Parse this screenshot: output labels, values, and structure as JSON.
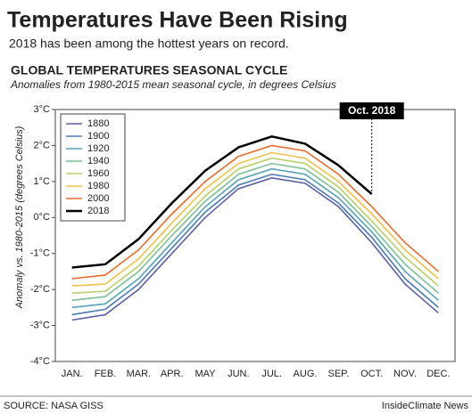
{
  "chart_data": {
    "type": "line",
    "headline": "Temperatures Have Been Rising",
    "subheadline": "2018 has been among the hottest years on record.",
    "title": "GLOBAL TEMPERATURES SEASONAL CYCLE",
    "subtitle": "Anomalies from 1980-2015 mean seasonal cycle, in degrees Celsius",
    "y_label": "Anomaly vs. 1980-2015 (degrees Celsius)",
    "annotation": "Oct. 2018",
    "source": "SOURCE: NASA GISS",
    "credit": "InsideClimate News",
    "legend": "upper left",
    "categories": [
      "JAN.",
      "FEB.",
      "MAR.",
      "APR.",
      "MAY",
      "JUN.",
      "JUL.",
      "AUG.",
      "SEP.",
      "OCT.",
      "NOV.",
      "DEC."
    ],
    "ylim": [
      -4,
      3
    ],
    "yticks": [
      {
        "value": 3,
        "label": "3°C"
      },
      {
        "value": 2,
        "label": "2°C"
      },
      {
        "value": 1,
        "label": "1°C"
      },
      {
        "value": 0,
        "label": "0°C"
      },
      {
        "value": -1,
        "label": "-1°C"
      },
      {
        "value": -2,
        "label": "-2°C"
      },
      {
        "value": -3,
        "label": "-3°C"
      },
      {
        "value": -4,
        "label": "-4°C"
      }
    ],
    "series": [
      {
        "name": "1880",
        "color": "#5b5ea6",
        "values": [
          -2.85,
          -2.7,
          -2.0,
          -1.0,
          0.0,
          0.8,
          1.1,
          0.95,
          0.3,
          -0.7,
          -1.85,
          -2.65
        ]
      },
      {
        "name": "1900",
        "color": "#4a7ab8",
        "values": [
          -2.7,
          -2.55,
          -1.85,
          -0.85,
          0.15,
          0.9,
          1.2,
          1.05,
          0.4,
          -0.55,
          -1.7,
          -2.5
        ]
      },
      {
        "name": "1920",
        "color": "#56a3b5",
        "values": [
          -2.5,
          -2.4,
          -1.7,
          -0.7,
          0.3,
          1.05,
          1.35,
          1.2,
          0.55,
          -0.4,
          -1.5,
          -2.3
        ]
      },
      {
        "name": "1940",
        "color": "#7cbf94",
        "values": [
          -2.3,
          -2.2,
          -1.5,
          -0.5,
          0.45,
          1.2,
          1.5,
          1.35,
          0.7,
          -0.25,
          -1.3,
          -2.1
        ]
      },
      {
        "name": "1960",
        "color": "#b8cf6a",
        "values": [
          -2.1,
          -2.05,
          -1.35,
          -0.35,
          0.6,
          1.35,
          1.65,
          1.5,
          0.85,
          -0.1,
          -1.1,
          -1.9
        ]
      },
      {
        "name": "1980",
        "color": "#f0c04a",
        "values": [
          -1.9,
          -1.85,
          -1.15,
          -0.15,
          0.8,
          1.5,
          1.8,
          1.65,
          1.0,
          0.1,
          -0.9,
          -1.7
        ]
      },
      {
        "name": "2000",
        "color": "#ea6a2a",
        "values": [
          -1.7,
          -1.6,
          -0.9,
          0.1,
          1.0,
          1.7,
          2.0,
          1.85,
          1.2,
          0.3,
          -0.7,
          -1.5
        ]
      },
      {
        "name": "2018",
        "color": "#000000",
        "values": [
          -1.39,
          -1.3,
          -0.6,
          0.4,
          1.3,
          1.95,
          2.25,
          2.05,
          1.45,
          0.65,
          null,
          null
        ]
      }
    ]
  }
}
